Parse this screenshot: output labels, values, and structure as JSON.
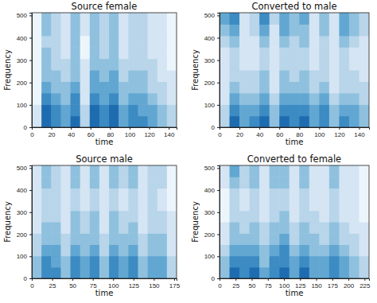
{
  "chart_data": [
    {
      "type": "heatmap",
      "title": "Source female",
      "xlabel": "time",
      "ylabel": "Frequency",
      "xlim": [
        0,
        148
      ],
      "xticks": [
        0,
        20,
        40,
        60,
        80,
        100,
        120,
        140
      ],
      "ylim": [
        0,
        512
      ],
      "yticks": [
        0,
        100,
        200,
        300,
        400,
        500
      ],
      "cells": [
        [
          0.3,
          0.8,
          0.7,
          0.6,
          0.8,
          0.4,
          0.8,
          0.7,
          0.8,
          0.6,
          0.7,
          0.7,
          0.6,
          0.5,
          0.4
        ],
        [
          0.3,
          0.8,
          0.7,
          0.6,
          0.7,
          0.4,
          0.8,
          0.7,
          0.8,
          0.6,
          0.7,
          0.6,
          0.6,
          0.5,
          0.4
        ],
        [
          0.2,
          0.7,
          0.6,
          0.5,
          0.7,
          0.3,
          0.7,
          0.6,
          0.7,
          0.5,
          0.6,
          0.6,
          0.5,
          0.4,
          0.3
        ],
        [
          0.2,
          0.6,
          0.5,
          0.5,
          0.6,
          0.3,
          0.6,
          0.6,
          0.6,
          0.5,
          0.5,
          0.5,
          0.4,
          0.4,
          0.3
        ],
        [
          0.2,
          0.5,
          0.5,
          0.4,
          0.5,
          0.3,
          0.6,
          0.5,
          0.6,
          0.4,
          0.5,
          0.5,
          0.4,
          0.3,
          0.3
        ],
        [
          0.2,
          0.5,
          0.4,
          0.4,
          0.5,
          0.3,
          0.5,
          0.5,
          0.5,
          0.4,
          0.4,
          0.4,
          0.4,
          0.3,
          0.2
        ],
        [
          0.2,
          0.5,
          0.4,
          0.3,
          0.5,
          0.2,
          0.5,
          0.4,
          0.5,
          0.3,
          0.4,
          0.4,
          0.3,
          0.3,
          0.2
        ],
        [
          0.2,
          0.4,
          0.4,
          0.3,
          0.5,
          0.2,
          0.5,
          0.4,
          0.5,
          0.3,
          0.4,
          0.4,
          0.3,
          0.3,
          0.2
        ],
        [
          0.2,
          0.5,
          0.4,
          0.3,
          0.5,
          0.3,
          0.5,
          0.4,
          0.5,
          0.3,
          0.4,
          0.4,
          0.3,
          0.3,
          0.2
        ],
        [
          0.2,
          0.5,
          0.4,
          0.3,
          0.5,
          0.3,
          0.5,
          0.4,
          0.5,
          0.3,
          0.4,
          0.4,
          0.3,
          0.3,
          0.2
        ]
      ]
    },
    {
      "type": "heatmap",
      "title": "Converted to male",
      "xlabel": "time",
      "ylabel": "Frequency",
      "xlim": [
        0,
        150
      ],
      "xticks": [
        0,
        20,
        40,
        60,
        80,
        100,
        120,
        140
      ],
      "ylim": [
        0,
        512
      ],
      "yticks": [
        0,
        100,
        200,
        300,
        400,
        500
      ],
      "cells": [
        [
          0.4,
          0.8,
          0.6,
          0.7,
          0.8,
          0.5,
          0.8,
          0.7,
          0.8,
          0.6,
          0.7,
          0.5,
          0.7,
          0.6,
          0.5
        ],
        [
          0.4,
          0.7,
          0.6,
          0.6,
          0.7,
          0.5,
          0.7,
          0.7,
          0.7,
          0.6,
          0.7,
          0.5,
          0.6,
          0.6,
          0.5
        ],
        [
          0.3,
          0.6,
          0.5,
          0.5,
          0.6,
          0.4,
          0.6,
          0.6,
          0.6,
          0.5,
          0.6,
          0.4,
          0.5,
          0.5,
          0.4
        ],
        [
          0.3,
          0.5,
          0.4,
          0.4,
          0.5,
          0.3,
          0.5,
          0.5,
          0.5,
          0.4,
          0.5,
          0.3,
          0.4,
          0.4,
          0.4
        ],
        [
          0.3,
          0.4,
          0.4,
          0.4,
          0.5,
          0.3,
          0.5,
          0.4,
          0.5,
          0.4,
          0.4,
          0.3,
          0.4,
          0.4,
          0.3
        ],
        [
          0.3,
          0.4,
          0.3,
          0.3,
          0.4,
          0.3,
          0.4,
          0.4,
          0.4,
          0.3,
          0.4,
          0.3,
          0.4,
          0.3,
          0.3
        ],
        [
          0.3,
          0.4,
          0.3,
          0.3,
          0.4,
          0.3,
          0.4,
          0.4,
          0.4,
          0.3,
          0.4,
          0.3,
          0.4,
          0.3,
          0.3
        ],
        [
          0.4,
          0.5,
          0.3,
          0.3,
          0.5,
          0.3,
          0.5,
          0.4,
          0.5,
          0.3,
          0.4,
          0.3,
          0.5,
          0.4,
          0.3
        ],
        [
          0.5,
          0.6,
          0.3,
          0.4,
          0.6,
          0.3,
          0.6,
          0.5,
          0.5,
          0.3,
          0.5,
          0.3,
          0.6,
          0.5,
          0.4
        ],
        [
          0.6,
          0.7,
          0.3,
          0.4,
          0.7,
          0.4,
          0.6,
          0.5,
          0.6,
          0.3,
          0.5,
          0.3,
          0.6,
          0.5,
          0.4
        ]
      ]
    },
    {
      "type": "heatmap",
      "title": "Source male",
      "xlabel": "time",
      "ylabel": "Frequency",
      "xlim": [
        0,
        178
      ],
      "xticks": [
        0,
        25,
        50,
        75,
        100,
        125,
        150,
        175
      ],
      "ylim": [
        0,
        512
      ],
      "yticks": [
        0,
        100,
        200,
        300,
        400,
        500
      ],
      "cells": [
        [
          0.5,
          0.7,
          0.7,
          0.5,
          0.7,
          0.6,
          0.7,
          0.5,
          0.7,
          0.6,
          0.7,
          0.5,
          0.6,
          0.6,
          0.4
        ],
        [
          0.5,
          0.7,
          0.6,
          0.5,
          0.7,
          0.6,
          0.7,
          0.5,
          0.7,
          0.6,
          0.7,
          0.5,
          0.6,
          0.6,
          0.4
        ],
        [
          0.4,
          0.6,
          0.6,
          0.4,
          0.6,
          0.5,
          0.6,
          0.4,
          0.6,
          0.5,
          0.6,
          0.4,
          0.5,
          0.5,
          0.3
        ],
        [
          0.4,
          0.5,
          0.5,
          0.4,
          0.5,
          0.5,
          0.5,
          0.4,
          0.5,
          0.5,
          0.5,
          0.4,
          0.5,
          0.5,
          0.3
        ],
        [
          0.3,
          0.5,
          0.5,
          0.3,
          0.5,
          0.4,
          0.5,
          0.3,
          0.5,
          0.4,
          0.5,
          0.3,
          0.4,
          0.4,
          0.3
        ],
        [
          0.3,
          0.4,
          0.4,
          0.3,
          0.5,
          0.4,
          0.5,
          0.3,
          0.5,
          0.4,
          0.4,
          0.3,
          0.4,
          0.4,
          0.3
        ],
        [
          0.3,
          0.4,
          0.4,
          0.3,
          0.4,
          0.3,
          0.4,
          0.3,
          0.4,
          0.3,
          0.4,
          0.3,
          0.4,
          0.3,
          0.2
        ],
        [
          0.3,
          0.4,
          0.4,
          0.3,
          0.4,
          0.3,
          0.4,
          0.3,
          0.4,
          0.3,
          0.4,
          0.3,
          0.4,
          0.3,
          0.2
        ],
        [
          0.3,
          0.5,
          0.4,
          0.3,
          0.5,
          0.3,
          0.5,
          0.3,
          0.5,
          0.4,
          0.5,
          0.3,
          0.4,
          0.4,
          0.2
        ],
        [
          0.3,
          0.5,
          0.4,
          0.3,
          0.5,
          0.3,
          0.5,
          0.3,
          0.5,
          0.4,
          0.5,
          0.3,
          0.4,
          0.4,
          0.2
        ]
      ]
    },
    {
      "type": "heatmap",
      "title": "Converted to female",
      "xlabel": "time",
      "ylabel": "Frequency",
      "xlim": [
        0,
        232
      ],
      "xticks": [
        0,
        25,
        50,
        75,
        100,
        125,
        150,
        175,
        200,
        225
      ],
      "ylim": [
        0,
        512
      ],
      "yticks": [
        0,
        100,
        200,
        300,
        400,
        500
      ],
      "cells": [
        [
          0.5,
          0.8,
          0.7,
          0.8,
          0.6,
          0.7,
          0.8,
          0.6,
          0.8,
          0.6,
          0.6,
          0.7,
          0.6,
          0.5,
          0.4
        ],
        [
          0.5,
          0.7,
          0.7,
          0.7,
          0.5,
          0.7,
          0.7,
          0.6,
          0.7,
          0.6,
          0.6,
          0.7,
          0.6,
          0.5,
          0.4
        ],
        [
          0.4,
          0.6,
          0.6,
          0.6,
          0.5,
          0.6,
          0.7,
          0.5,
          0.6,
          0.5,
          0.5,
          0.6,
          0.5,
          0.4,
          0.3
        ],
        [
          0.3,
          0.5,
          0.5,
          0.5,
          0.4,
          0.5,
          0.6,
          0.4,
          0.5,
          0.5,
          0.4,
          0.5,
          0.4,
          0.4,
          0.3
        ],
        [
          0.3,
          0.5,
          0.4,
          0.5,
          0.4,
          0.5,
          0.5,
          0.4,
          0.5,
          0.4,
          0.4,
          0.5,
          0.4,
          0.3,
          0.3
        ],
        [
          0.2,
          0.4,
          0.4,
          0.4,
          0.3,
          0.4,
          0.5,
          0.3,
          0.4,
          0.4,
          0.3,
          0.4,
          0.3,
          0.3,
          0.2
        ],
        [
          0.2,
          0.4,
          0.3,
          0.4,
          0.3,
          0.4,
          0.4,
          0.3,
          0.4,
          0.3,
          0.3,
          0.4,
          0.3,
          0.3,
          0.2
        ],
        [
          0.2,
          0.4,
          0.3,
          0.4,
          0.3,
          0.4,
          0.4,
          0.3,
          0.4,
          0.3,
          0.3,
          0.4,
          0.3,
          0.3,
          0.2
        ],
        [
          0.3,
          0.5,
          0.4,
          0.5,
          0.3,
          0.5,
          0.5,
          0.3,
          0.5,
          0.3,
          0.3,
          0.5,
          0.3,
          0.3,
          0.2
        ],
        [
          0.3,
          0.6,
          0.4,
          0.5,
          0.3,
          0.5,
          0.5,
          0.3,
          0.5,
          0.3,
          0.3,
          0.5,
          0.3,
          0.3,
          0.2
        ]
      ]
    }
  ]
}
